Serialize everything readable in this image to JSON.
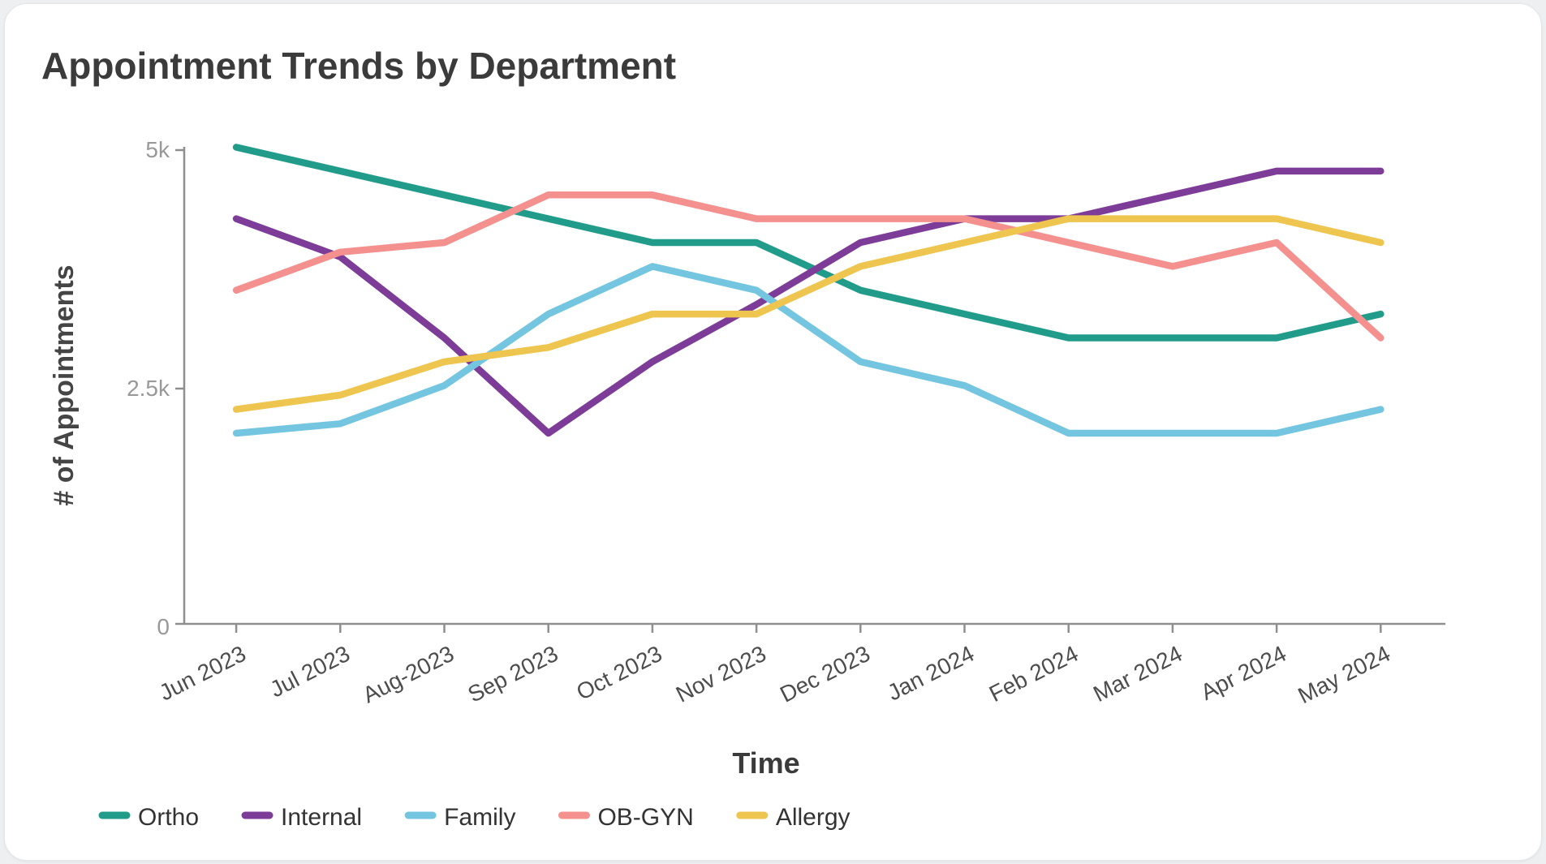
{
  "chart_data": {
    "type": "line",
    "title": "Appointment Trends by Department",
    "xlabel": "Time",
    "ylabel": "# of Appointments",
    "categories": [
      "Jun 2023",
      "Jul 2023",
      "Aug-2023",
      "Sep 2023",
      "Oct 2023",
      "Nov 2023",
      "Dec 2023",
      "Jan 2024",
      "Feb 2024",
      "Mar 2024",
      "Apr 2024",
      "May 2024"
    ],
    "yticks": [
      {
        "label": "5k",
        "value": 5000
      },
      {
        "label": "2.5k",
        "value": 2500
      },
      {
        "label": "0",
        "value": 0
      }
    ],
    "ylim": [
      0,
      5000
    ],
    "grid": false,
    "legend_position": "bottom-left",
    "series": [
      {
        "name": "Ortho",
        "color": "#219C8B",
        "values": [
          5000,
          4750,
          4500,
          4250,
          4000,
          4000,
          3500,
          3250,
          3000,
          3000,
          3000,
          3250
        ]
      },
      {
        "name": "Internal",
        "color": "#7D3C98",
        "values": [
          4250,
          3850,
          3000,
          2000,
          2750,
          3350,
          4000,
          4250,
          4250,
          4500,
          4750,
          4750
        ]
      },
      {
        "name": "Family",
        "color": "#74C6E0",
        "values": [
          2000,
          2100,
          2500,
          3250,
          3750,
          3500,
          2750,
          2500,
          2000,
          2000,
          2000,
          2250
        ]
      },
      {
        "name": "OB-GYN",
        "color": "#F4908E",
        "values": [
          3500,
          3900,
          4000,
          4500,
          4500,
          4250,
          4250,
          4250,
          4000,
          3750,
          4000,
          3000
        ]
      },
      {
        "name": "Allergy",
        "color": "#EEC54E",
        "values": [
          2250,
          2400,
          2750,
          2900,
          3250,
          3250,
          3750,
          4000,
          4250,
          4250,
          4250,
          4000
        ]
      }
    ],
    "style": {
      "title_color": "#3b3b3b",
      "axis_color": "#8f8f8f",
      "x_label_color": "#4d4d4d",
      "y_tick_color": "#999999",
      "legend_text_color": "#333333"
    }
  }
}
